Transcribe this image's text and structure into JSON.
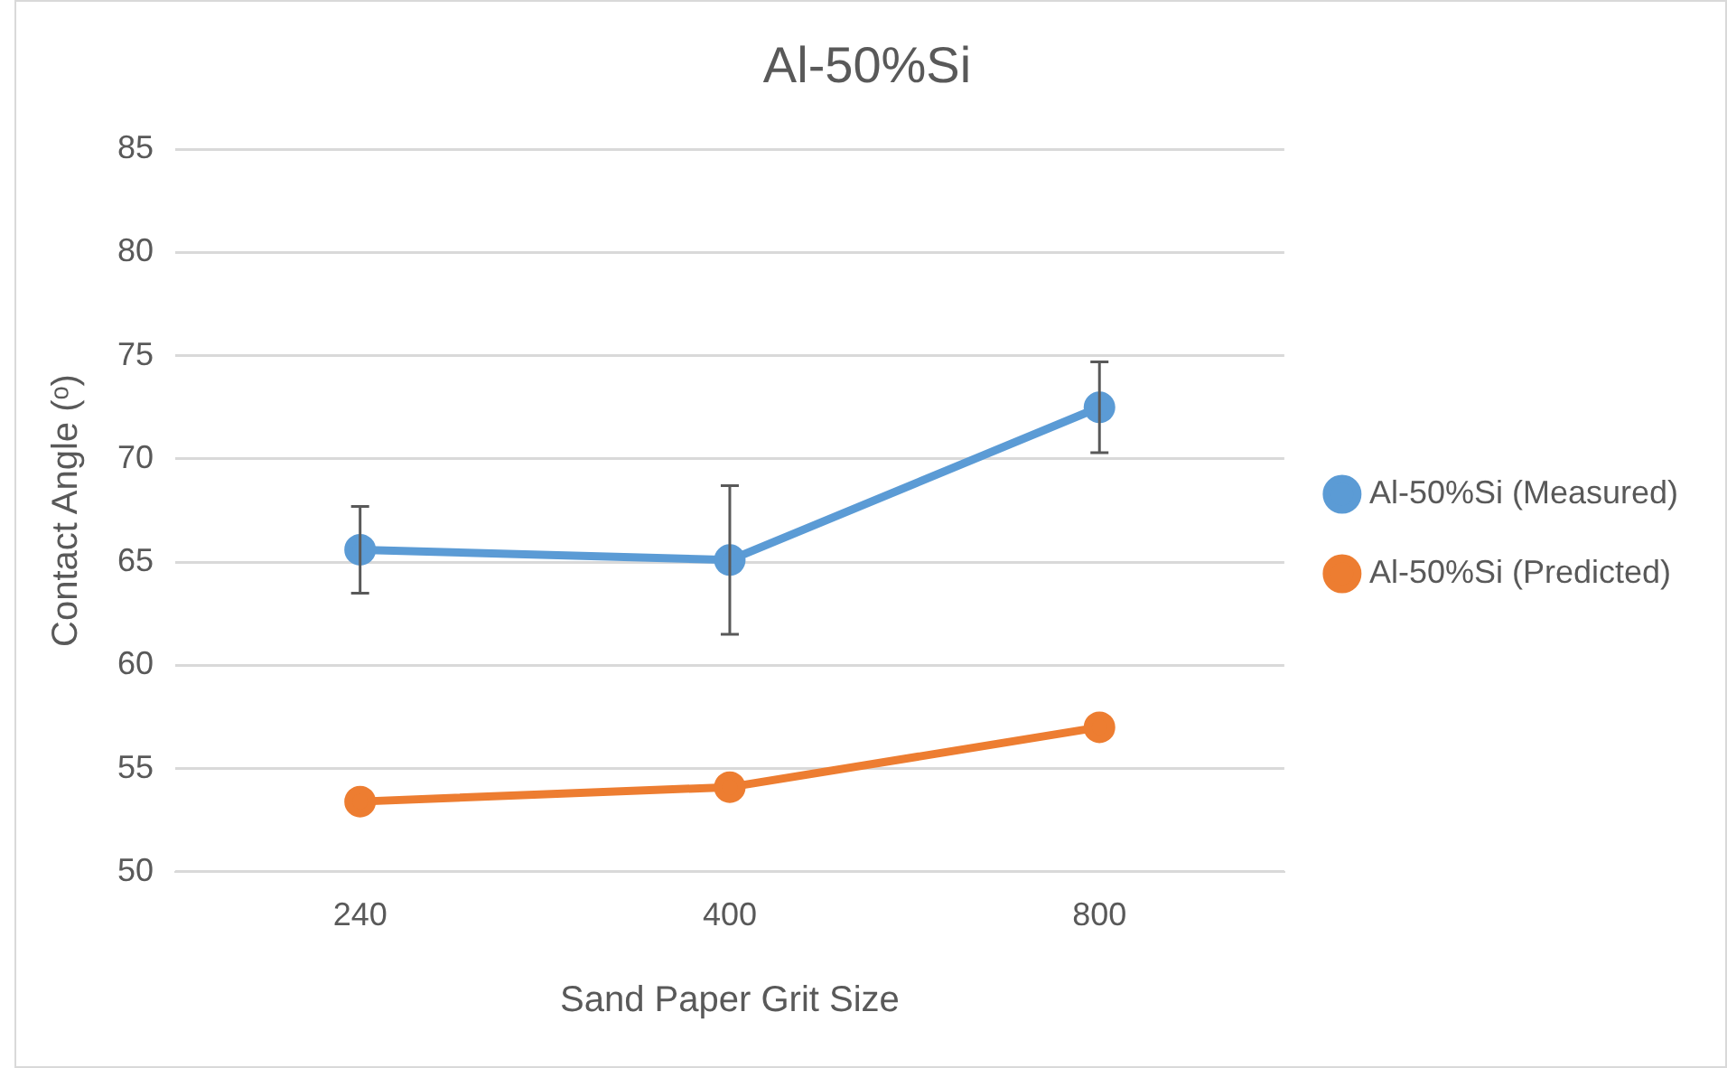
{
  "chart_data": {
    "type": "line",
    "title": "Al-50%Si",
    "xlabel": "Sand Paper Grit Size",
    "ylabel": "Contact Angle (ᵒ)",
    "categories": [
      "240",
      "400",
      "800"
    ],
    "series": [
      {
        "name": "Al-50%Si (Measured)",
        "color": "#5b9bd5",
        "values": [
          65.6,
          65.1,
          72.5
        ],
        "errors": [
          2.1,
          3.6,
          2.2
        ]
      },
      {
        "name": "Al-50%Si (Predicted)",
        "color": "#ed7d31",
        "values": [
          53.4,
          54.1,
          57.0
        ]
      }
    ],
    "ylim": [
      50,
      85
    ],
    "yticks": [
      50,
      55,
      60,
      65,
      70,
      75,
      80,
      85
    ],
    "grid": "y",
    "legend": "right",
    "marker": "circle",
    "line_style": "solid"
  }
}
